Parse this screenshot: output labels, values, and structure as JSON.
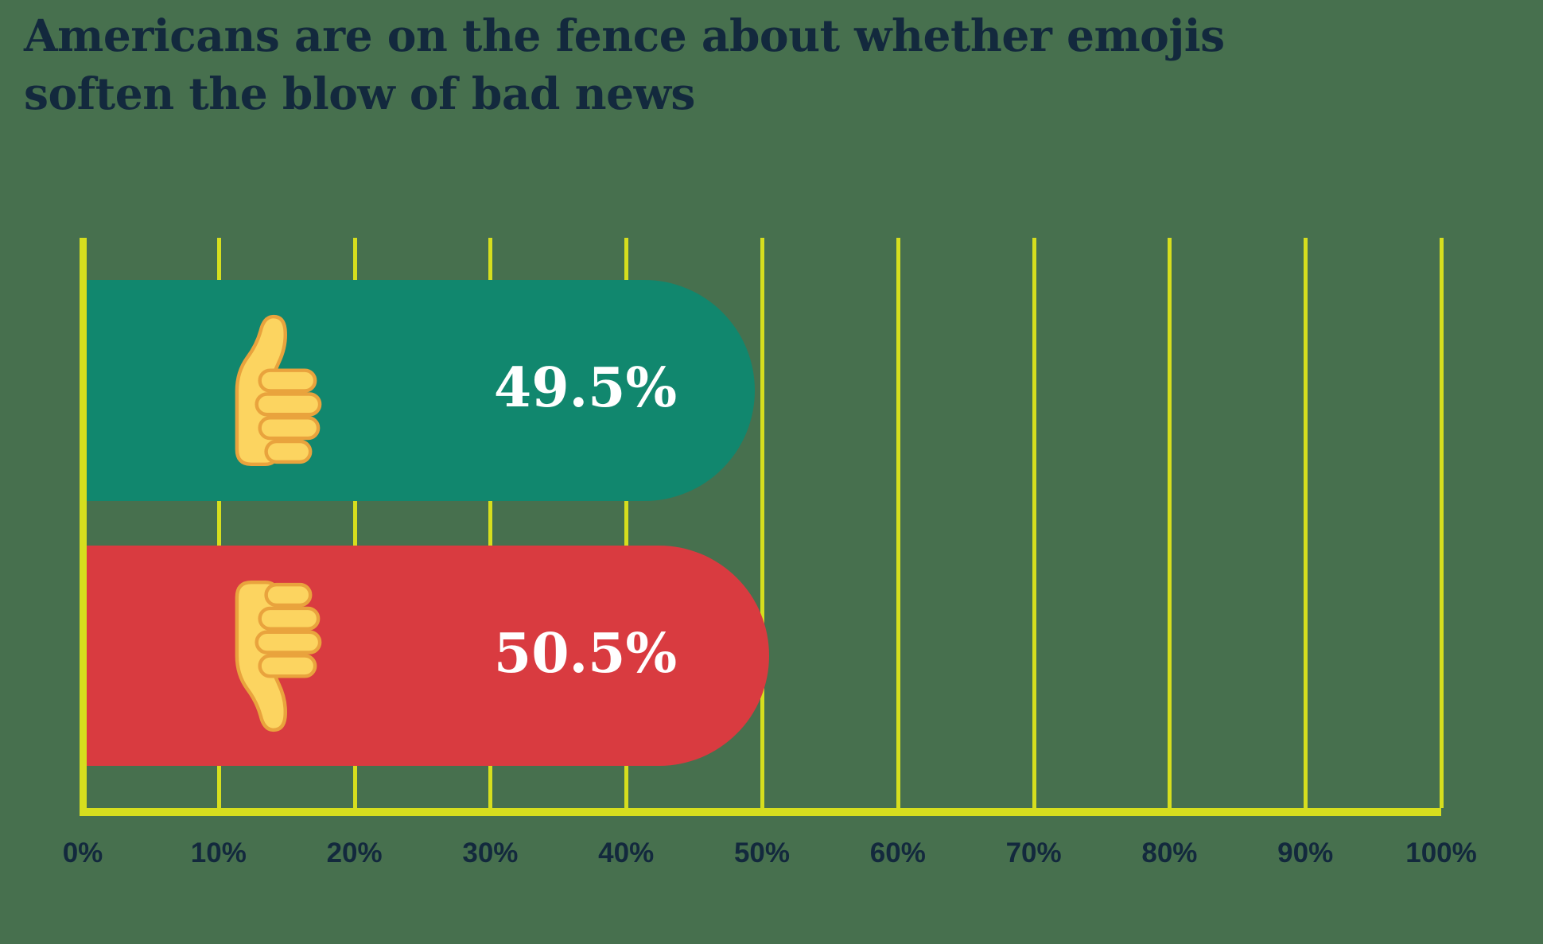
{
  "title": {
    "line1": "Americans are on the fence about whether emojis",
    "line2": "soften the blow of bad news"
  },
  "colors": {
    "background": "#47704E",
    "grid": "#D6DE1E",
    "title_text": "#13293D",
    "tick_text": "#13293D",
    "value_text": "#FFFFFF",
    "thumb_fill": "#FCD460",
    "thumb_outline": "#E9A33D",
    "bar_positive": "#11876E",
    "bar_negative": "#D93B40"
  },
  "chart_data": {
    "type": "bar",
    "orientation": "horizontal",
    "title": "Americans are on the fence about whether emojis soften the blow of bad news",
    "xlabel": "",
    "ylabel": "",
    "xlim": [
      0,
      100
    ],
    "grid": "vertical",
    "legend": "none",
    "tick_values": [
      0,
      10,
      20,
      30,
      40,
      50,
      60,
      70,
      80,
      90,
      100
    ],
    "tick_labels": [
      "0%",
      "10%",
      "20%",
      "30%",
      "40%",
      "50%",
      "60%",
      "70%",
      "80%",
      "90%",
      "100%"
    ],
    "categories": [
      "thumbs-up",
      "thumbs-down"
    ],
    "bars": [
      {
        "category": "thumbs-up",
        "icon": "thumbs-up-emoji",
        "value": 49.5,
        "label": "49.5%",
        "color": "#11876E"
      },
      {
        "category": "thumbs-down",
        "icon": "thumbs-down-emoji",
        "value": 50.5,
        "label": "50.5%",
        "color": "#D93B40"
      }
    ]
  }
}
